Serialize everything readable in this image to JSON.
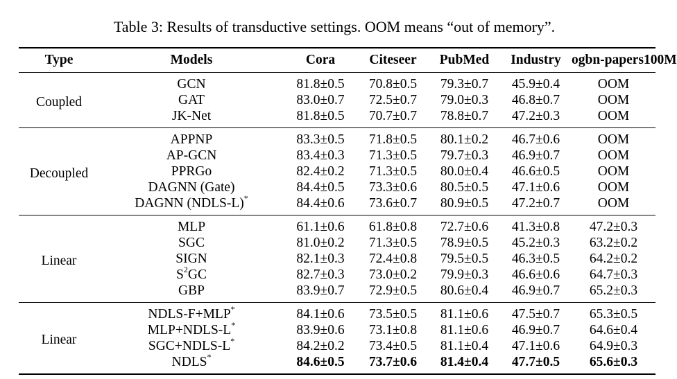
{
  "caption": "Table 3: Results of transductive settings. OOM means “out of memory”.",
  "headers": [
    "Type",
    "Models",
    "Cora",
    "Citeseer",
    "PubMed",
    "Industry",
    "ogbn-papers100M"
  ],
  "groups": [
    {
      "type": "Coupled",
      "rows": [
        {
          "model": "GCN",
          "cells": [
            {
              "v": "81.8±0.5"
            },
            {
              "v": "70.8±0.5"
            },
            {
              "v": "79.3±0.7"
            },
            {
              "v": "45.9±0.4"
            },
            {
              "v": "OOM"
            }
          ]
        },
        {
          "model": "GAT",
          "cells": [
            {
              "v": "83.0±0.7"
            },
            {
              "v": "72.5±0.7"
            },
            {
              "v": "79.0±0.3"
            },
            {
              "v": "46.8±0.7"
            },
            {
              "v": "OOM"
            }
          ]
        },
        {
          "model": "JK-Net",
          "cells": [
            {
              "v": "81.8±0.5"
            },
            {
              "v": "70.7±0.7"
            },
            {
              "v": "78.8±0.7"
            },
            {
              "v": "47.2±0.3"
            },
            {
              "v": "OOM"
            }
          ]
        }
      ]
    },
    {
      "type": "Decoupled",
      "rows": [
        {
          "model": "APPNP",
          "cells": [
            {
              "v": "83.3±0.5"
            },
            {
              "v": "71.8±0.5"
            },
            {
              "v": "80.1±0.2"
            },
            {
              "v": "46.7±0.6"
            },
            {
              "v": "OOM"
            }
          ]
        },
        {
          "model": "AP-GCN",
          "cells": [
            {
              "v": "83.4±0.3"
            },
            {
              "v": "71.3±0.5"
            },
            {
              "v": "79.7±0.3"
            },
            {
              "v": "46.9±0.7"
            },
            {
              "v": "OOM"
            }
          ]
        },
        {
          "model": "PPRGo",
          "cells": [
            {
              "v": "82.4±0.2"
            },
            {
              "v": "71.3±0.5"
            },
            {
              "v": "80.0±0.4"
            },
            {
              "v": "46.6±0.5"
            },
            {
              "v": "OOM"
            }
          ]
        },
        {
          "model": "DAGNN (Gate)",
          "cells": [
            {
              "v": "84.4±0.5"
            },
            {
              "v": "73.3±0.6"
            },
            {
              "v": "80.5±0.5"
            },
            {
              "v": "47.1±0.6"
            },
            {
              "v": "OOM"
            }
          ]
        },
        {
          "model": "DAGNN (NDLS-L)",
          "sup": "*",
          "cells": [
            {
              "v": "84.4±0.6"
            },
            {
              "v": "73.6±0.7"
            },
            {
              "v": "80.9±0.5"
            },
            {
              "v": "47.2±0.7"
            },
            {
              "v": "OOM"
            }
          ]
        }
      ]
    },
    {
      "type": "Linear",
      "rows": [
        {
          "model": "MLP",
          "cells": [
            {
              "v": "61.1±0.6"
            },
            {
              "v": "61.8±0.8"
            },
            {
              "v": "72.7±0.6"
            },
            {
              "v": "41.3±0.8"
            },
            {
              "v": "47.2±0.3"
            }
          ]
        },
        {
          "model": "SGC",
          "cells": [
            {
              "v": "81.0±0.2"
            },
            {
              "v": "71.3±0.5"
            },
            {
              "v": "78.9±0.5"
            },
            {
              "v": "45.2±0.3"
            },
            {
              "v": "63.2±0.2"
            }
          ]
        },
        {
          "model": "SIGN",
          "cells": [
            {
              "v": "82.1±0.3"
            },
            {
              "v": "72.4±0.8"
            },
            {
              "v": "79.5±0.5"
            },
            {
              "v": "46.3±0.5"
            },
            {
              "v": "64.2±0.2"
            }
          ]
        },
        {
          "model": "S",
          "model_sup": "2",
          "model_suffix": "GC",
          "cells": [
            {
              "v": "82.7±0.3"
            },
            {
              "v": "73.0±0.2"
            },
            {
              "v": "79.9±0.3"
            },
            {
              "v": "46.6±0.6"
            },
            {
              "v": "64.7±0.3"
            }
          ]
        },
        {
          "model": "GBP",
          "cells": [
            {
              "v": "83.9±0.7"
            },
            {
              "v": "72.9±0.5"
            },
            {
              "v": "80.6±0.4"
            },
            {
              "v": "46.9±0.7"
            },
            {
              "v": "65.2±0.3"
            }
          ]
        }
      ]
    },
    {
      "type": "Linear",
      "rows": [
        {
          "model": "NDLS-F+MLP",
          "sup": "*",
          "cells": [
            {
              "v": "84.1±0.6"
            },
            {
              "v": "73.5±0.5"
            },
            {
              "v": "81.1±0.6"
            },
            {
              "v": "47.5±0.7"
            },
            {
              "v": "65.3±0.5"
            }
          ]
        },
        {
          "model": "MLP+NDLS-L",
          "sup": "*",
          "cells": [
            {
              "v": "83.9±0.6"
            },
            {
              "v": "73.1±0.8"
            },
            {
              "v": "81.1±0.6"
            },
            {
              "v": "46.9±0.7"
            },
            {
              "v": "64.6±0.4"
            }
          ]
        },
        {
          "model": "SGC+NDLS-L",
          "sup": "*",
          "cells": [
            {
              "v": "84.2±0.2"
            },
            {
              "v": "73.4±0.5"
            },
            {
              "v": "81.1±0.4"
            },
            {
              "v": "47.1±0.6"
            },
            {
              "v": "64.9±0.3"
            }
          ]
        },
        {
          "model": "NDLS",
          "sup": "*",
          "cells": [
            {
              "v": "84.6±0.5",
              "bold": true
            },
            {
              "v": "73.7±0.6",
              "bold": true
            },
            {
              "v": "81.4±0.4",
              "bold": true
            },
            {
              "v": "47.7±0.5",
              "bold": true
            },
            {
              "v": "65.6±0.3",
              "bold": true
            }
          ]
        }
      ]
    }
  ]
}
